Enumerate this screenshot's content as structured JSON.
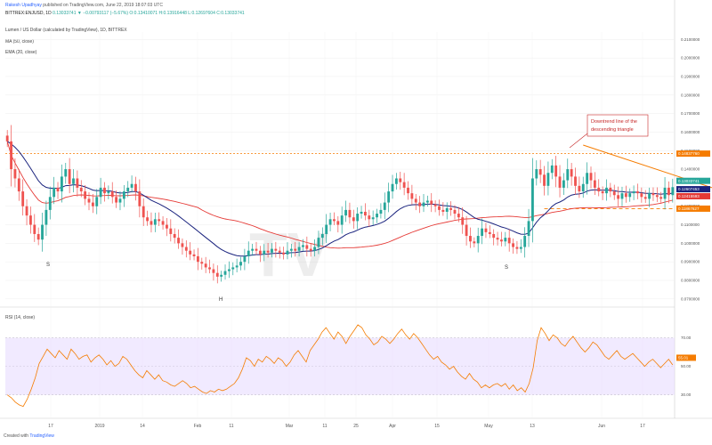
{
  "header": {
    "author": "Rakesh Upadhyay",
    "published_on": "published on TradingView.com, June 22, 2019 18:07:03 UTC",
    "symbol": "BITTREX:ENJUSD, 1D",
    "ohlc": "0.13033741  ▼ −0.00793117 (−5.67%)  O:0.13410071  H:0.13916448  L:0.12697604  C:0.13033741",
    "title": "Lumen / US Dollar (calculated by TradingView), 1D, BITTREX",
    "ma1": "MA (50, close)",
    "ma2": "EMA (20, close)"
  },
  "footer": {
    "created_with": "Created with",
    "brand": "TradingView"
  },
  "annotation": {
    "text": "Downtrend line of the descending triangle",
    "color": "#c62828"
  },
  "patterns": {
    "left_shoulder": "S",
    "head": "H",
    "right_shoulder": "S"
  },
  "watermark": "TV",
  "price_badges": [
    {
      "label": "0.14837760",
      "color": "#f57c00"
    },
    {
      "label": "0.13033741",
      "color": "#26a69a"
    },
    {
      "label": "0.12607453",
      "color": "#1a237e"
    },
    {
      "label": "0.12415593",
      "color": "#e53935"
    },
    {
      "label": "0.11867627",
      "color": "#f57c00"
    }
  ],
  "rsi": {
    "label": "RSI (14, close)",
    "value_label": "55.01"
  },
  "colors": {
    "up": "#26a69a",
    "down": "#ef5350",
    "ema": "#1a237e",
    "ma": "#e53935",
    "res": "#f57c00",
    "rsiLine": "#f57c00",
    "rsiBand": "#e6d9ff"
  },
  "chart_data": {
    "type": "candlestick",
    "title": "Lumen / US Dollar (calculated by TradingView), 1D, BITTREX",
    "y_ticks": [
      "0.2100000",
      "0.2000000",
      "0.1900000",
      "0.1800000",
      "0.1700000",
      "0.1600000",
      "0.1500000",
      "0.1400000",
      "0.1300000",
      "0.1200000",
      "0.1100000",
      "0.1000000",
      "0.0900000",
      "0.0800000",
      "0.0700000"
    ],
    "ylim": [
      0.068,
      0.214
    ],
    "x_ticks": [
      "17",
      "2019",
      "14",
      "Feb",
      "11",
      "Mar",
      "11",
      "25",
      "Apr",
      "15",
      "May",
      "13",
      "Jun",
      "17"
    ],
    "resistance": 0.1484,
    "support": 0.1187,
    "downtrend_line": [
      {
        "i": 148,
        "v": 0.153
      },
      {
        "i": 184,
        "v": 0.128
      }
    ],
    "close_series": [
      0.155,
      0.14,
      0.135,
      0.128,
      0.12,
      0.115,
      0.11,
      0.105,
      0.102,
      0.11,
      0.118,
      0.125,
      0.13,
      0.128,
      0.136,
      0.14,
      0.132,
      0.135,
      0.13,
      0.128,
      0.124,
      0.122,
      0.12,
      0.125,
      0.13,
      0.127,
      0.128,
      0.125,
      0.122,
      0.124,
      0.128,
      0.13,
      0.132,
      0.128,
      0.12,
      0.114,
      0.112,
      0.11,
      0.113,
      0.112,
      0.11,
      0.108,
      0.105,
      0.103,
      0.1,
      0.098,
      0.096,
      0.094,
      0.093,
      0.09,
      0.089,
      0.087,
      0.086,
      0.084,
      0.082,
      0.083,
      0.085,
      0.086,
      0.087,
      0.088,
      0.09,
      0.093,
      0.096,
      0.097,
      0.096,
      0.094,
      0.096,
      0.095,
      0.097,
      0.096,
      0.095,
      0.094,
      0.096,
      0.097,
      0.096,
      0.098,
      0.099,
      0.097,
      0.096,
      0.098,
      0.103,
      0.105,
      0.11,
      0.113,
      0.112,
      0.11,
      0.115,
      0.118,
      0.114,
      0.112,
      0.116,
      0.117,
      0.115,
      0.113,
      0.114,
      0.116,
      0.118,
      0.122,
      0.128,
      0.132,
      0.135,
      0.133,
      0.13,
      0.127,
      0.124,
      0.122,
      0.12,
      0.122,
      0.123,
      0.121,
      0.12,
      0.118,
      0.117,
      0.119,
      0.118,
      0.116,
      0.114,
      0.11,
      0.104,
      0.101,
      0.1,
      0.104,
      0.108,
      0.106,
      0.105,
      0.103,
      0.102,
      0.101,
      0.103,
      0.1,
      0.098,
      0.097,
      0.098,
      0.104,
      0.112,
      0.135,
      0.14,
      0.137,
      0.131,
      0.138,
      0.142,
      0.136,
      0.13,
      0.134,
      0.14,
      0.136,
      0.131,
      0.128,
      0.132,
      0.138,
      0.134,
      0.13,
      0.128,
      0.127,
      0.13,
      0.128,
      0.126,
      0.124,
      0.127,
      0.125,
      0.127,
      0.128,
      0.127,
      0.125,
      0.124,
      0.127,
      0.126,
      0.125,
      0.124,
      0.13,
      0.126,
      0.1303
    ],
    "rsi_y_ticks": [
      "70.00",
      "50.00",
      "30.00"
    ],
    "rsi_ylim": [
      18,
      84
    ],
    "rsi_band": [
      30,
      70
    ],
    "rsi_series": [
      30,
      28,
      25,
      23,
      22,
      27,
      34,
      42,
      52,
      57,
      62,
      59,
      56,
      61,
      58,
      55,
      62,
      59,
      55,
      57,
      58,
      53,
      56,
      58,
      55,
      51,
      54,
      50,
      52,
      57,
      55,
      51,
      47,
      44,
      42,
      47,
      44,
      41,
      44,
      40,
      39,
      37,
      36,
      38,
      40,
      38,
      35,
      36,
      34,
      32,
      31,
      33,
      32,
      34,
      33,
      34,
      36,
      38,
      42,
      48,
      56,
      54,
      50,
      55,
      53,
      57,
      55,
      52,
      56,
      54,
      50,
      53,
      58,
      61,
      57,
      53,
      61,
      65,
      69,
      74,
      77,
      73,
      69,
      74,
      71,
      66,
      71,
      75,
      79,
      77,
      72,
      69,
      65,
      67,
      71,
      69,
      66,
      69,
      73,
      76,
      72,
      69,
      73,
      70,
      66,
      62,
      58,
      55,
      57,
      53,
      51,
      48,
      50,
      46,
      43,
      41,
      45,
      41,
      39,
      35,
      37,
      35,
      37,
      38,
      36,
      38,
      34,
      37,
      33,
      35,
      32,
      38,
      49,
      68,
      77,
      73,
      68,
      72,
      70,
      66,
      64,
      68,
      71,
      67,
      63,
      60,
      63,
      67,
      65,
      61,
      57,
      55,
      58,
      61,
      57,
      55,
      57,
      59,
      56,
      53,
      50,
      53,
      55,
      52,
      49,
      52,
      55,
      51
    ]
  }
}
